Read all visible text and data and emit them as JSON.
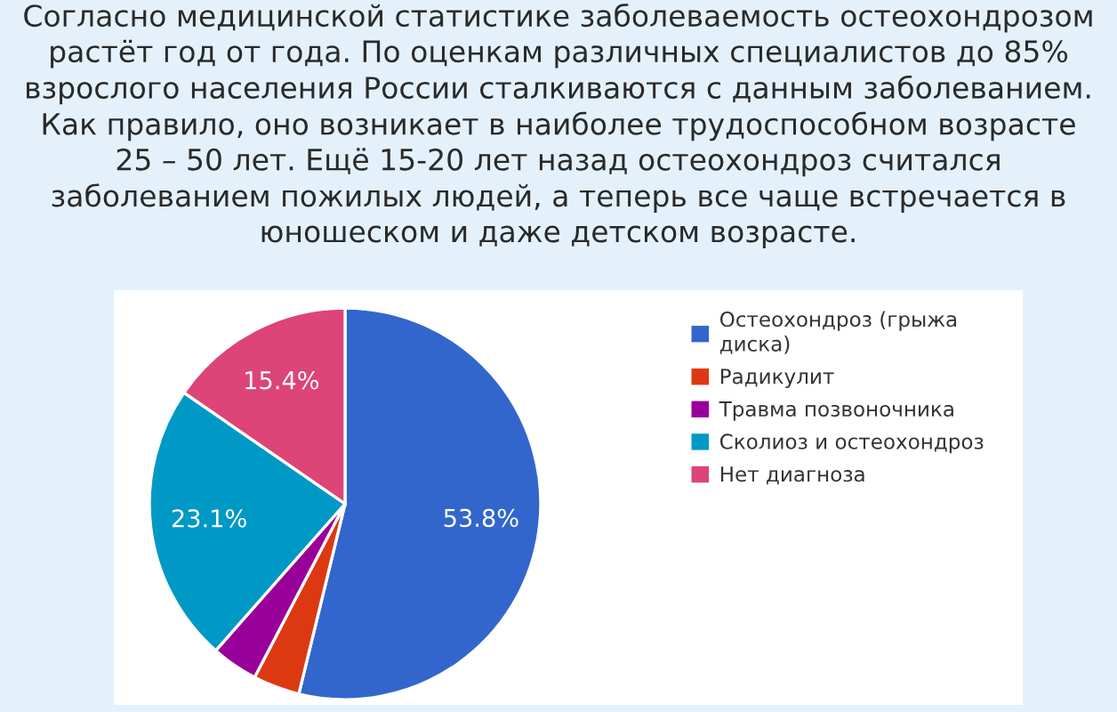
{
  "chart_data": {
    "type": "pie",
    "title": "Согласно медицинской статистике заболеваемость остеохондрозом\nрастёт год от года. По оценкам различных специалистов до 85%\nвзрослого населения России сталкиваются с данным заболеванием.\nКак правило, оно возникает в наиболее трудоспособном возрасте\n25 – 50 лет. Ещё 15-20 лет назад остеохондроз считался\nзаболеванием пожилых людей, а теперь все чаще встречается в\nюношеском и даже детском возрасте.",
    "categories": [
      "Остеохондроз (грыжа\nдиска)",
      "Радикулит",
      "Травма позвоночника",
      "Сколиоз и остеохондроз",
      "Нет диагноза"
    ],
    "values": [
      53.8,
      3.85,
      3.85,
      23.1,
      15.4
    ],
    "colors": [
      "#3366cc",
      "#dc3912",
      "#990099",
      "#0099c6",
      "#dd4477"
    ],
    "value_labels": [
      "53.8%",
      null,
      null,
      "23.1%",
      "15.4%"
    ],
    "legend": "right"
  }
}
